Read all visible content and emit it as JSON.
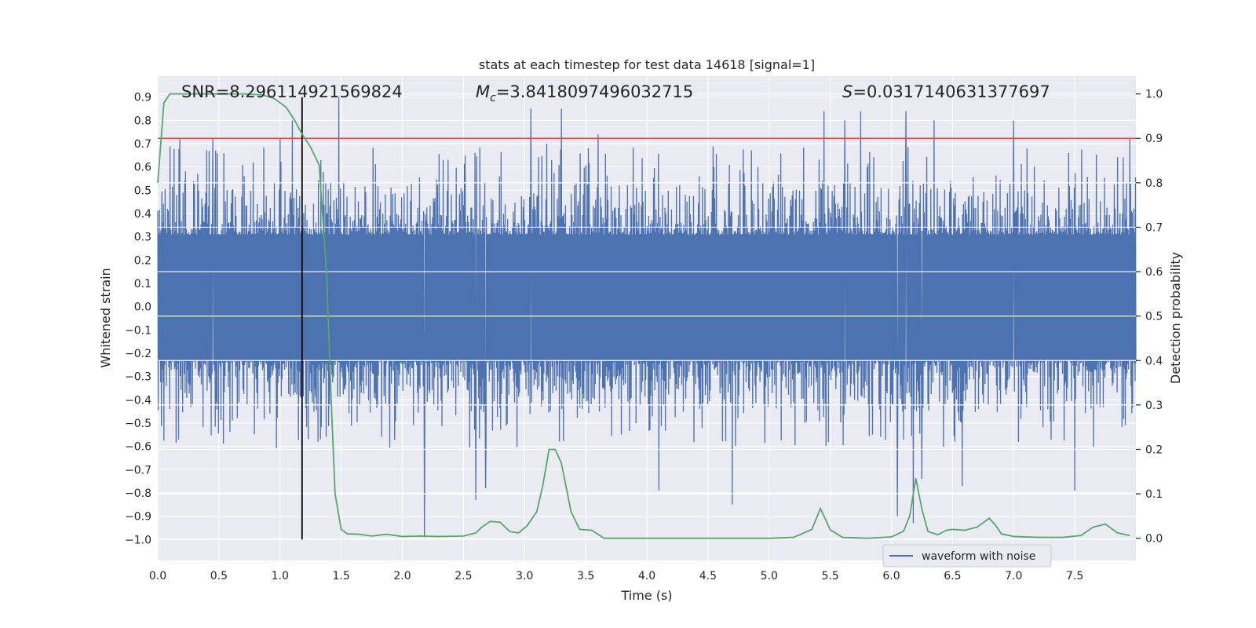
{
  "chart_data": {
    "type": "line",
    "title": "stats at each timestep for test data 14618 [signal=1]",
    "xlabel": "Time (s)",
    "ylabel_left": "Whitened strain",
    "ylabel_right": "Detection probability",
    "xlim": [
      0.0,
      8.0
    ],
    "ylim_left": [
      -1.09,
      0.99
    ],
    "ylim_right": [
      -0.05,
      1.04
    ],
    "xticks": [
      "0.0",
      "0.5",
      "1.0",
      "1.5",
      "2.0",
      "2.5",
      "3.0",
      "3.5",
      "4.0",
      "4.5",
      "5.0",
      "5.5",
      "6.0",
      "6.5",
      "7.0",
      "7.5"
    ],
    "yticks_left": [
      "0.9",
      "0.8",
      "0.7",
      "0.6",
      "0.5",
      "0.4",
      "0.3",
      "0.2",
      "0.1",
      "0.0",
      "−0.1",
      "−0.2",
      "−0.3",
      "−0.4",
      "−0.5",
      "−0.6",
      "−0.7",
      "−0.8",
      "−0.9",
      "−1.0"
    ],
    "yticks_right": [
      "1.0",
      "0.9",
      "0.8",
      "0.7",
      "0.6",
      "0.5",
      "0.4",
      "0.3",
      "0.2",
      "0.1",
      "0.0"
    ],
    "grid": true,
    "legend_position": "lower-right",
    "annotations": {
      "snr_text": "SNR=8.296114921569824",
      "mc_symbol": "M",
      "mc_subscript": "c",
      "mc_value": "=3.8418097496032715",
      "s_symbol": "S",
      "s_value": "=0.0317140631377697"
    },
    "threshold": {
      "axis": "right",
      "value": 0.9,
      "color": "#c44e52"
    },
    "marker_time": {
      "x": 1.18,
      "color": "#000000"
    },
    "series": [
      {
        "name": "waveform with noise",
        "axis": "left",
        "color": "#4c72b0",
        "kind": "dense noise waveform, 8 s",
        "band_min": -0.25,
        "band_max": 0.33,
        "peak_times": [
          0.18,
          0.45,
          1.0,
          1.1,
          1.48,
          2.18,
          2.6,
          2.68,
          3.05,
          3.18,
          3.3,
          3.6,
          4.1,
          4.7,
          5.45,
          5.62,
          5.75,
          6.05,
          6.12,
          6.18,
          6.25,
          6.35,
          6.58,
          7.0,
          7.5,
          7.95
        ],
        "peak_values": [
          0.72,
          0.72,
          0.72,
          0.8,
          0.9,
          -0.99,
          -0.83,
          -0.78,
          0.85,
          0.7,
          0.85,
          0.74,
          -0.79,
          -0.85,
          0.84,
          0.8,
          0.84,
          -0.9,
          0.84,
          -0.93,
          -0.74,
          0.8,
          -0.77,
          0.8,
          -0.79,
          0.72
        ]
      },
      {
        "axis": "right",
        "color": "#55a868",
        "x": [
          0.0,
          0.05,
          0.1,
          0.2,
          0.3,
          0.5,
          0.7,
          0.85,
          0.95,
          1.05,
          1.12,
          1.18,
          1.25,
          1.32,
          1.38,
          1.42,
          1.45,
          1.5,
          1.55,
          1.65,
          1.75,
          1.87,
          2.0,
          2.15,
          2.3,
          2.5,
          2.6,
          2.65,
          2.72,
          2.8,
          2.88,
          2.95,
          3.02,
          3.1,
          3.15,
          3.2,
          3.25,
          3.3,
          3.38,
          3.45,
          3.55,
          3.65,
          3.75,
          3.9,
          4.0,
          4.2,
          4.5,
          4.8,
          5.0,
          5.2,
          5.35,
          5.42,
          5.5,
          5.6,
          5.8,
          6.0,
          6.1,
          6.15,
          6.2,
          6.25,
          6.3,
          6.38,
          6.45,
          6.5,
          6.6,
          6.7,
          6.8,
          6.85,
          6.9,
          7.0,
          7.2,
          7.4,
          7.55,
          7.65,
          7.75,
          7.85,
          7.95
        ],
        "y": [
          0.8,
          0.98,
          1.0,
          1.0,
          1.0,
          1.0,
          1.0,
          0.998,
          0.99,
          0.97,
          0.94,
          0.91,
          0.88,
          0.84,
          0.6,
          0.3,
          0.1,
          0.02,
          0.01,
          0.009,
          0.005,
          0.009,
          0.004,
          0.005,
          0.004,
          0.005,
          0.012,
          0.025,
          0.038,
          0.036,
          0.015,
          0.012,
          0.028,
          0.06,
          0.12,
          0.2,
          0.2,
          0.17,
          0.06,
          0.02,
          0.018,
          0.0,
          0.0,
          0.0,
          0.0,
          0.0,
          0.0,
          0.0,
          0.0,
          0.002,
          0.02,
          0.067,
          0.019,
          0.002,
          0.0,
          0.003,
          0.016,
          0.05,
          0.135,
          0.065,
          0.015,
          0.008,
          0.018,
          0.02,
          0.018,
          0.025,
          0.045,
          0.03,
          0.01,
          0.004,
          0.002,
          0.002,
          0.006,
          0.025,
          0.032,
          0.012,
          0.006
        ]
      }
    ]
  }
}
